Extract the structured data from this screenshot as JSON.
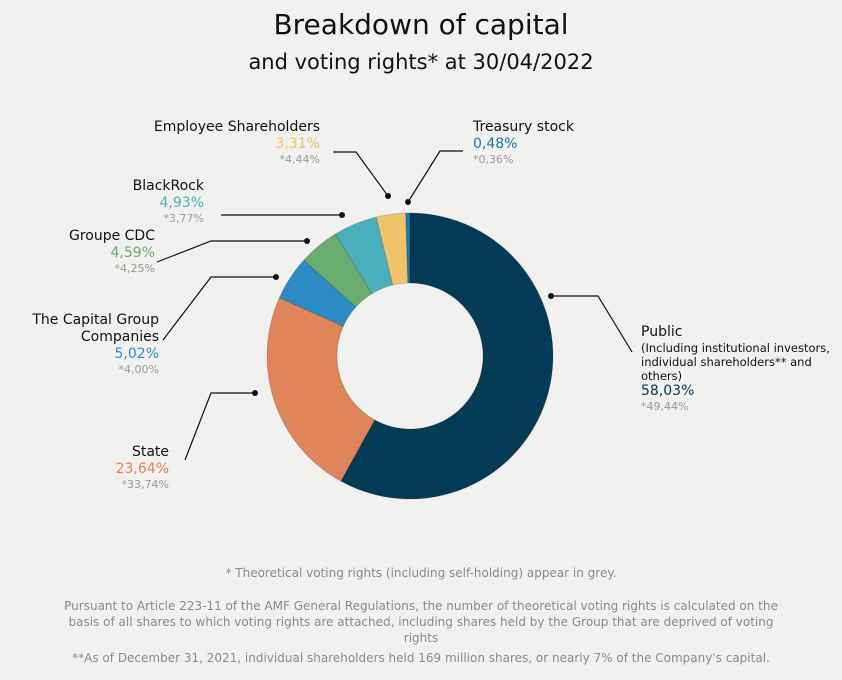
{
  "title": "Breakdown of capital",
  "subtitle": "and voting rights* at 30/04/2022",
  "chart_data": {
    "type": "pie",
    "donut": true,
    "title": "Breakdown of capital",
    "subtitle": "and voting rights* at 30/04/2022",
    "slices": [
      {
        "name": "Public",
        "detail": "(Including institutional investors, individual shareholders** and others)",
        "value": 58.03,
        "label": "58,03%",
        "voting": "*49,44%",
        "color": "#033a55"
      },
      {
        "name": "State",
        "value": 23.64,
        "label": "23,64%",
        "voting": "*33,74%",
        "color": "#e0845a"
      },
      {
        "name": "The Capital Group Companies",
        "value": 5.02,
        "label": "5,02%",
        "voting": "*4,00%",
        "color": "#2b8bc3"
      },
      {
        "name": "Groupe CDC",
        "value": 4.59,
        "label": "4,59%",
        "voting": "*4,25%",
        "color": "#68ad6e"
      },
      {
        "name": "BlackRock",
        "value": 4.93,
        "label": "4,93%",
        "voting": "*3,77%",
        "color": "#4aafbd"
      },
      {
        "name": "Employee Shareholders",
        "value": 3.31,
        "label": "3,31%",
        "voting": "*4,44%",
        "color": "#f2c46a"
      },
      {
        "name": "Treasury stock",
        "value": 0.48,
        "label": "0,48%",
        "voting": "*0,36%",
        "color": "#1a7aa0"
      }
    ]
  },
  "notes": [
    "* Theoretical voting rights (including self-holding) appear in grey.",
    "Pursuant to Article 223-11 of the AMF General Regulations, the number of theoretical voting rights is calculated on the basis of all shares to which voting rights are attached, including shares held by the Group that are deprived of voting rights",
    "**As of December 31, 2021, individual shareholders held 169 million shares, or nearly 7% of the Company's capital."
  ]
}
